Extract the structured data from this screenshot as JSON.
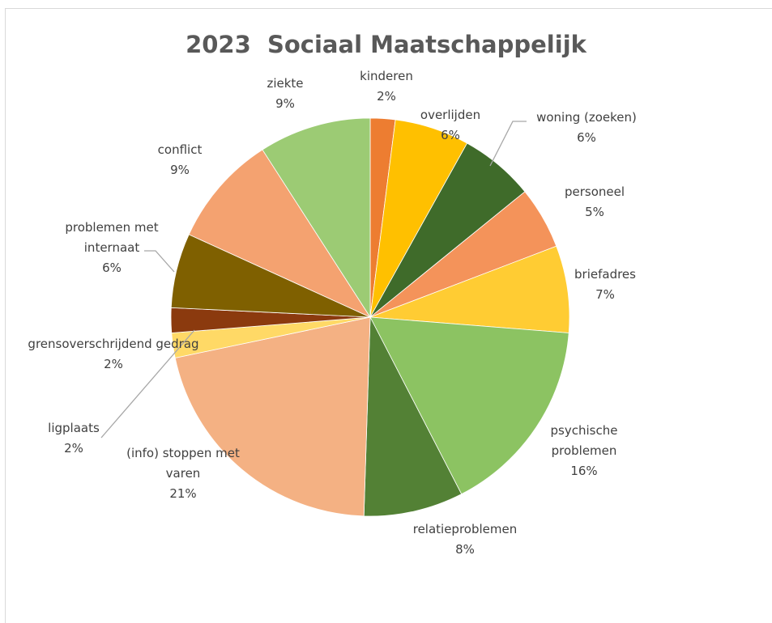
{
  "chart_data": {
    "type": "pie",
    "title": "2023  Sociaal Maatschappelijk",
    "slices": [
      {
        "label": "kinderen",
        "value": 2,
        "value_label": "2%",
        "color": "#ED7D31"
      },
      {
        "label": "overlijden",
        "value": 6,
        "value_label": "6%",
        "color": "#FFC000"
      },
      {
        "label": "woning (zoeken)",
        "value": 6,
        "value_label": "6%",
        "color": "#3F6B2A"
      },
      {
        "label": "personeel",
        "value": 5,
        "value_label": "5%",
        "color": "#F4935A"
      },
      {
        "label": "briefadres",
        "value": 7,
        "value_label": "7%",
        "color": "#FFCC33"
      },
      {
        "label": "psychische problemen",
        "value": 16,
        "value_label": "16%",
        "color": "#8CC362"
      },
      {
        "label": "relatieproblemen",
        "value": 8,
        "value_label": "8%",
        "color": "#538135"
      },
      {
        "label": "(info) stoppen met varen",
        "value": 21,
        "value_label": "21%",
        "color": "#F4B183"
      },
      {
        "label": "grensoverschrijdend gedrag",
        "value": 2,
        "value_label": "2%",
        "color": "#FFD966"
      },
      {
        "label": "ligplaats",
        "value": 2,
        "value_label": "2%",
        "color": "#8B3A0E"
      },
      {
        "label": "problemen met internaat",
        "value": 6,
        "value_label": "6%",
        "color": "#7F6000"
      },
      {
        "label": "conflict",
        "value": 9,
        "value_label": "9%",
        "color": "#F4A270"
      },
      {
        "label": "ziekte",
        "value": 9,
        "value_label": "9%",
        "color": "#9CCB74"
      }
    ],
    "legend": "none",
    "data_labels": "outside with leader lines"
  }
}
